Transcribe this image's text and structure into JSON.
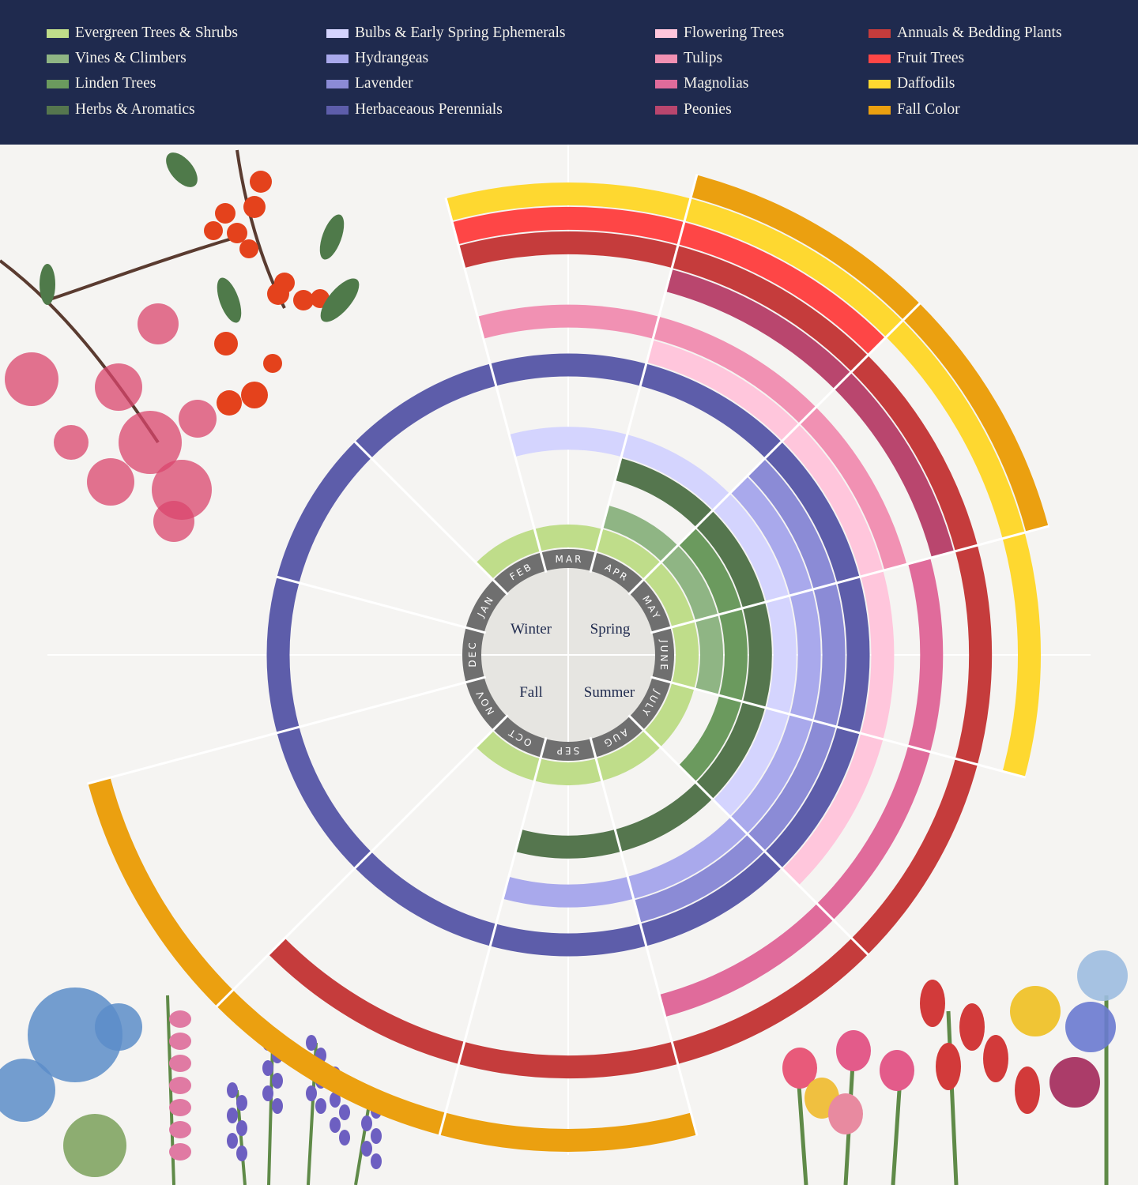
{
  "chart_data": {
    "type": "bar",
    "layout": "polar",
    "months": [
      "JAN",
      "FEB",
      "MAR",
      "APR",
      "MAY",
      "JUNE",
      "JULY",
      "AUG",
      "SEP",
      "OCT",
      "NOV",
      "DEC"
    ],
    "seasons": [
      "Winter",
      "Spring",
      "Fall",
      "Summer"
    ],
    "legend_position": "top",
    "series": [
      {
        "name": "Evergreen Trees & Shrubs",
        "color": "#bfdd8a",
        "months": [
          "FEB",
          "MAR",
          "APR",
          "MAY",
          "JUNE",
          "JULY",
          "AUG",
          "SEP",
          "OCT"
        ]
      },
      {
        "name": "Vines & Climbers",
        "color": "#8fb584",
        "months": [
          "APR",
          "MAY",
          "JUNE"
        ]
      },
      {
        "name": "Linden Trees",
        "color": "#6b9a5e",
        "months": [
          "MAY",
          "JUNE",
          "JULY"
        ]
      },
      {
        "name": "Herbs & Aromatics",
        "color": "#55764e",
        "months": [
          "APR",
          "MAY",
          "JUNE",
          "JULY",
          "AUG",
          "SEP"
        ]
      },
      {
        "name": "Bulbs & Early Spring Ephemerals",
        "color": "#d4d4fe",
        "months": [
          "MAR",
          "APR",
          "MAY",
          "JUNE",
          "JULY"
        ]
      },
      {
        "name": "Hydrangeas",
        "color": "#a9a9ec",
        "months": [
          "MAY",
          "JUNE",
          "JULY",
          "AUG",
          "SEP"
        ]
      },
      {
        "name": "Lavender",
        "color": "#8b8bd6",
        "months": [
          "MAY",
          "JUNE",
          "JULY",
          "AUG"
        ]
      },
      {
        "name": "Herbaceaous Perennials",
        "color": "#5d5daa",
        "months": [
          "JAN",
          "FEB",
          "MAR",
          "APR",
          "MAY",
          "JUNE",
          "JULY",
          "AUG",
          "SEP",
          "OCT",
          "NOV",
          "DEC"
        ]
      },
      {
        "name": "Flowering Trees",
        "color": "#ffc6dc",
        "months": [
          "APR",
          "MAY",
          "JUNE",
          "JULY"
        ]
      },
      {
        "name": "Tulips",
        "color": "#f191b3",
        "months": [
          "MAR",
          "APR",
          "MAY"
        ]
      },
      {
        "name": "Magnolias",
        "color": "#e06b9b",
        "months": [
          "JUNE",
          "JULY",
          "AUG"
        ]
      },
      {
        "name": "Peonies",
        "color": "#b9466e",
        "months": [
          "APR",
          "MAY"
        ]
      },
      {
        "name": "Annuals & Bedding Plants",
        "color": "#c53c3c",
        "months": [
          "MAR",
          "APR",
          "MAY",
          "JUNE",
          "JULY",
          "AUG",
          "SEP",
          "OCT"
        ]
      },
      {
        "name": "Fruit Trees",
        "color": "#fe4646",
        "months": [
          "MAR",
          "APR"
        ]
      },
      {
        "name": "Daffodils",
        "color": "#fed830",
        "months": [
          "MAR",
          "APR",
          "MAY",
          "JUNE"
        ]
      },
      {
        "name": "Fall Color",
        "color": "#eba010",
        "months": [
          "APR",
          "MAY",
          "SEP",
          "OCT",
          "NOV"
        ]
      }
    ]
  },
  "colors": {
    "header": "#1f2a4e",
    "background": "#f5f4f2",
    "month_ring": "#6f6f6f",
    "center": "#e6e5e1"
  }
}
